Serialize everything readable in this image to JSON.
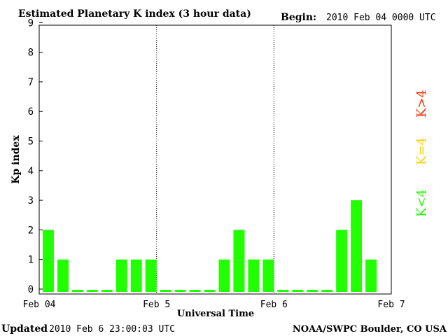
{
  "header": {
    "title": "Estimated Planetary K index (3 hour data)",
    "begin_label": "Begin:",
    "begin_value": "2010 Feb 04 0000 UTC"
  },
  "footer": {
    "updated_label": "Updated",
    "updated_value": "2010 Feb  6 23:00:03 UTC",
    "source": "NOAA/SWPC Boulder, CO USA"
  },
  "legend": {
    "items": [
      {
        "label": "K>4",
        "color": "#ff2a00"
      },
      {
        "label": "K=4",
        "color": "#ffd000"
      },
      {
        "label": "K<4",
        "color": "#22ff00"
      }
    ]
  },
  "chart_data": {
    "type": "bar",
    "title": "Estimated Planetary K index (3 hour data)",
    "xlabel": "Universal Time",
    "ylabel": "Kp index",
    "ylim": [
      0,
      9
    ],
    "yticks": [
      0,
      1,
      2,
      3,
      4,
      5,
      6,
      7,
      8,
      9
    ],
    "xtick_labels": [
      "Feb 04",
      "Feb 5",
      "Feb 6",
      "Feb 7"
    ],
    "days": 3,
    "bars_per_day": 8,
    "bar_color": "#22ff00",
    "values": [
      2,
      1,
      0,
      0,
      0,
      1,
      1,
      1,
      0,
      0,
      0,
      0,
      1,
      2,
      1,
      1,
      0,
      0,
      0,
      0,
      2,
      3,
      1
    ],
    "grid": false,
    "day_separators": "dotted"
  }
}
